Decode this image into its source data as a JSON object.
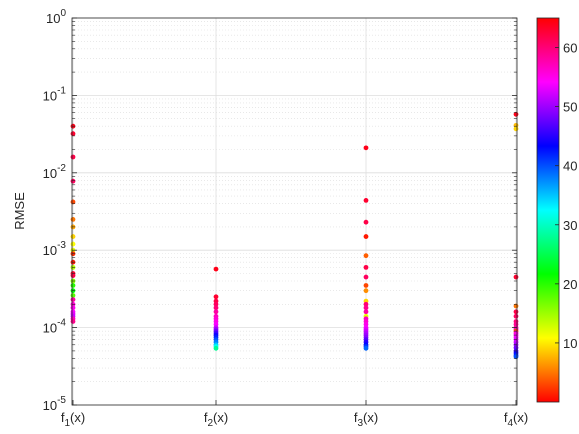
{
  "chart_data": {
    "type": "scatter",
    "ylabel": "RMSE",
    "yscale": "log",
    "ylim": [
      1e-05,
      1
    ],
    "y_ticks": [
      {
        "base": "10",
        "exp": "0"
      },
      {
        "base": "10",
        "exp": "-1"
      },
      {
        "base": "10",
        "exp": "-2"
      },
      {
        "base": "10",
        "exp": "-3"
      },
      {
        "base": "10",
        "exp": "-4"
      },
      {
        "base": "10",
        "exp": "-5"
      }
    ],
    "categories": [
      {
        "main": "f",
        "sub": "1",
        "rest": "(x)"
      },
      {
        "main": "f",
        "sub": "2",
        "rest": "(x)"
      },
      {
        "main": "f",
        "sub": "3",
        "rest": "(x)"
      },
      {
        "main": "f",
        "sub": "4",
        "rest": "(x)"
      }
    ],
    "grid": true,
    "colorbar": {
      "colormap": [
        "#ff0000",
        "#ffff00",
        "#00ff00",
        "#00ffff",
        "#0000ff",
        "#ff00ff",
        "#ff0000"
      ],
      "range": [
        0,
        65
      ],
      "tick_labels": [
        "10",
        "20",
        "30",
        "40",
        "50",
        "60"
      ],
      "tick_values": [
        10,
        20,
        30,
        40,
        50,
        60
      ]
    },
    "points": [
      {
        "cat": 0,
        "y": 0.04,
        "c": 64
      },
      {
        "cat": 0,
        "y": 0.032,
        "c": 63
      },
      {
        "cat": 0,
        "y": 0.016,
        "c": 62
      },
      {
        "cat": 0,
        "y": 0.0078,
        "c": 61
      },
      {
        "cat": 0,
        "y": 0.0042,
        "c": 3
      },
      {
        "cat": 0,
        "y": 0.0025,
        "c": 5
      },
      {
        "cat": 0,
        "y": 0.002,
        "c": 7
      },
      {
        "cat": 0,
        "y": 0.0015,
        "c": 9
      },
      {
        "cat": 0,
        "y": 0.0012,
        "c": 11
      },
      {
        "cat": 0,
        "y": 0.001,
        "c": 12
      },
      {
        "cat": 0,
        "y": 0.0009,
        "c": 2
      },
      {
        "cat": 0,
        "y": 0.0007,
        "c": 1
      },
      {
        "cat": 0,
        "y": 0.0006,
        "c": 14
      },
      {
        "cat": 0,
        "y": 0.0005,
        "c": 63
      },
      {
        "cat": 0,
        "y": 0.00047,
        "c": 62
      },
      {
        "cat": 0,
        "y": 0.0004,
        "c": 16
      },
      {
        "cat": 0,
        "y": 0.00035,
        "c": 20
      },
      {
        "cat": 0,
        "y": 0.0003,
        "c": 22
      },
      {
        "cat": 0,
        "y": 0.00026,
        "c": 18
      },
      {
        "cat": 0,
        "y": 0.00023,
        "c": 58
      },
      {
        "cat": 0,
        "y": 0.0002,
        "c": 56
      },
      {
        "cat": 0,
        "y": 0.00018,
        "c": 55
      },
      {
        "cat": 0,
        "y": 0.00016,
        "c": 54
      },
      {
        "cat": 0,
        "y": 0.00015,
        "c": 53
      },
      {
        "cat": 0,
        "y": 0.00014,
        "c": 52
      },
      {
        "cat": 0,
        "y": 0.00013,
        "c": 57
      },
      {
        "cat": 0,
        "y": 0.00012,
        "c": 59
      },
      {
        "cat": 1,
        "y": 0.00057,
        "c": 64
      },
      {
        "cat": 1,
        "y": 0.00025,
        "c": 63
      },
      {
        "cat": 1,
        "y": 0.00022,
        "c": 62
      },
      {
        "cat": 1,
        "y": 0.0002,
        "c": 61
      },
      {
        "cat": 1,
        "y": 0.00018,
        "c": 60
      },
      {
        "cat": 1,
        "y": 0.00016,
        "c": 58
      },
      {
        "cat": 1,
        "y": 0.00014,
        "c": 57
      },
      {
        "cat": 1,
        "y": 0.00013,
        "c": 56
      },
      {
        "cat": 1,
        "y": 0.00012,
        "c": 55
      },
      {
        "cat": 1,
        "y": 0.00011,
        "c": 54
      },
      {
        "cat": 1,
        "y": 0.0001,
        "c": 52
      },
      {
        "cat": 1,
        "y": 9.5e-05,
        "c": 50
      },
      {
        "cat": 1,
        "y": 9e-05,
        "c": 48
      },
      {
        "cat": 1,
        "y": 8.5e-05,
        "c": 46
      },
      {
        "cat": 1,
        "y": 8e-05,
        "c": 44
      },
      {
        "cat": 1,
        "y": 7.5e-05,
        "c": 42
      },
      {
        "cat": 1,
        "y": 7e-05,
        "c": 40
      },
      {
        "cat": 1,
        "y": 6.5e-05,
        "c": 38
      },
      {
        "cat": 1,
        "y": 6e-05,
        "c": 35
      },
      {
        "cat": 1,
        "y": 5.7e-05,
        "c": 32
      },
      {
        "cat": 1,
        "y": 5.4e-05,
        "c": 28
      },
      {
        "cat": 2,
        "y": 0.021,
        "c": 64
      },
      {
        "cat": 2,
        "y": 0.0044,
        "c": 63
      },
      {
        "cat": 2,
        "y": 0.0023,
        "c": 62
      },
      {
        "cat": 2,
        "y": 0.0015,
        "c": 1
      },
      {
        "cat": 2,
        "y": 0.00085,
        "c": 4
      },
      {
        "cat": 2,
        "y": 0.0006,
        "c": 62
      },
      {
        "cat": 2,
        "y": 0.00045,
        "c": 61
      },
      {
        "cat": 2,
        "y": 0.00035,
        "c": 3
      },
      {
        "cat": 2,
        "y": 0.0003,
        "c": 6
      },
      {
        "cat": 2,
        "y": 0.00022,
        "c": 9
      },
      {
        "cat": 2,
        "y": 0.0002,
        "c": 60
      },
      {
        "cat": 2,
        "y": 0.00018,
        "c": 59
      },
      {
        "cat": 2,
        "y": 0.00016,
        "c": 58
      },
      {
        "cat": 2,
        "y": 0.00014,
        "c": 12
      },
      {
        "cat": 2,
        "y": 0.00013,
        "c": 57
      },
      {
        "cat": 2,
        "y": 0.00012,
        "c": 56
      },
      {
        "cat": 2,
        "y": 0.00011,
        "c": 55
      },
      {
        "cat": 2,
        "y": 0.0001,
        "c": 54
      },
      {
        "cat": 2,
        "y": 9.5e-05,
        "c": 53
      },
      {
        "cat": 2,
        "y": 9e-05,
        "c": 52
      },
      {
        "cat": 2,
        "y": 8.5e-05,
        "c": 51
      },
      {
        "cat": 2,
        "y": 8e-05,
        "c": 50
      },
      {
        "cat": 2,
        "y": 7.5e-05,
        "c": 49
      },
      {
        "cat": 2,
        "y": 7e-05,
        "c": 47
      },
      {
        "cat": 2,
        "y": 6.5e-05,
        "c": 45
      },
      {
        "cat": 2,
        "y": 6e-05,
        "c": 43
      },
      {
        "cat": 2,
        "y": 5.7e-05,
        "c": 41
      },
      {
        "cat": 2,
        "y": 5.4e-05,
        "c": 39
      },
      {
        "cat": 3,
        "y": 0.057,
        "c": 64
      },
      {
        "cat": 3,
        "y": 0.041,
        "c": 8
      },
      {
        "cat": 3,
        "y": 0.037,
        "c": 9
      },
      {
        "cat": 3,
        "y": 0.00045,
        "c": 63
      },
      {
        "cat": 3,
        "y": 0.00019,
        "c": 5
      },
      {
        "cat": 3,
        "y": 0.00016,
        "c": 62
      },
      {
        "cat": 3,
        "y": 0.00014,
        "c": 61
      },
      {
        "cat": 3,
        "y": 0.00012,
        "c": 60
      },
      {
        "cat": 3,
        "y": 0.00011,
        "c": 59
      },
      {
        "cat": 3,
        "y": 0.0001,
        "c": 58
      },
      {
        "cat": 3,
        "y": 9.5e-05,
        "c": 57
      },
      {
        "cat": 3,
        "y": 9e-05,
        "c": 3
      },
      {
        "cat": 3,
        "y": 8.5e-05,
        "c": 56
      },
      {
        "cat": 3,
        "y": 8e-05,
        "c": 55
      },
      {
        "cat": 3,
        "y": 7.5e-05,
        "c": 54
      },
      {
        "cat": 3,
        "y": 7e-05,
        "c": 53
      },
      {
        "cat": 3,
        "y": 6.5e-05,
        "c": 52
      },
      {
        "cat": 3,
        "y": 6e-05,
        "c": 50
      },
      {
        "cat": 3,
        "y": 5.5e-05,
        "c": 48
      },
      {
        "cat": 3,
        "y": 5e-05,
        "c": 46
      },
      {
        "cat": 3,
        "y": 4.7e-05,
        "c": 44
      },
      {
        "cat": 3,
        "y": 4.4e-05,
        "c": 42
      },
      {
        "cat": 3,
        "y": 4.2e-05,
        "c": 40
      }
    ]
  }
}
